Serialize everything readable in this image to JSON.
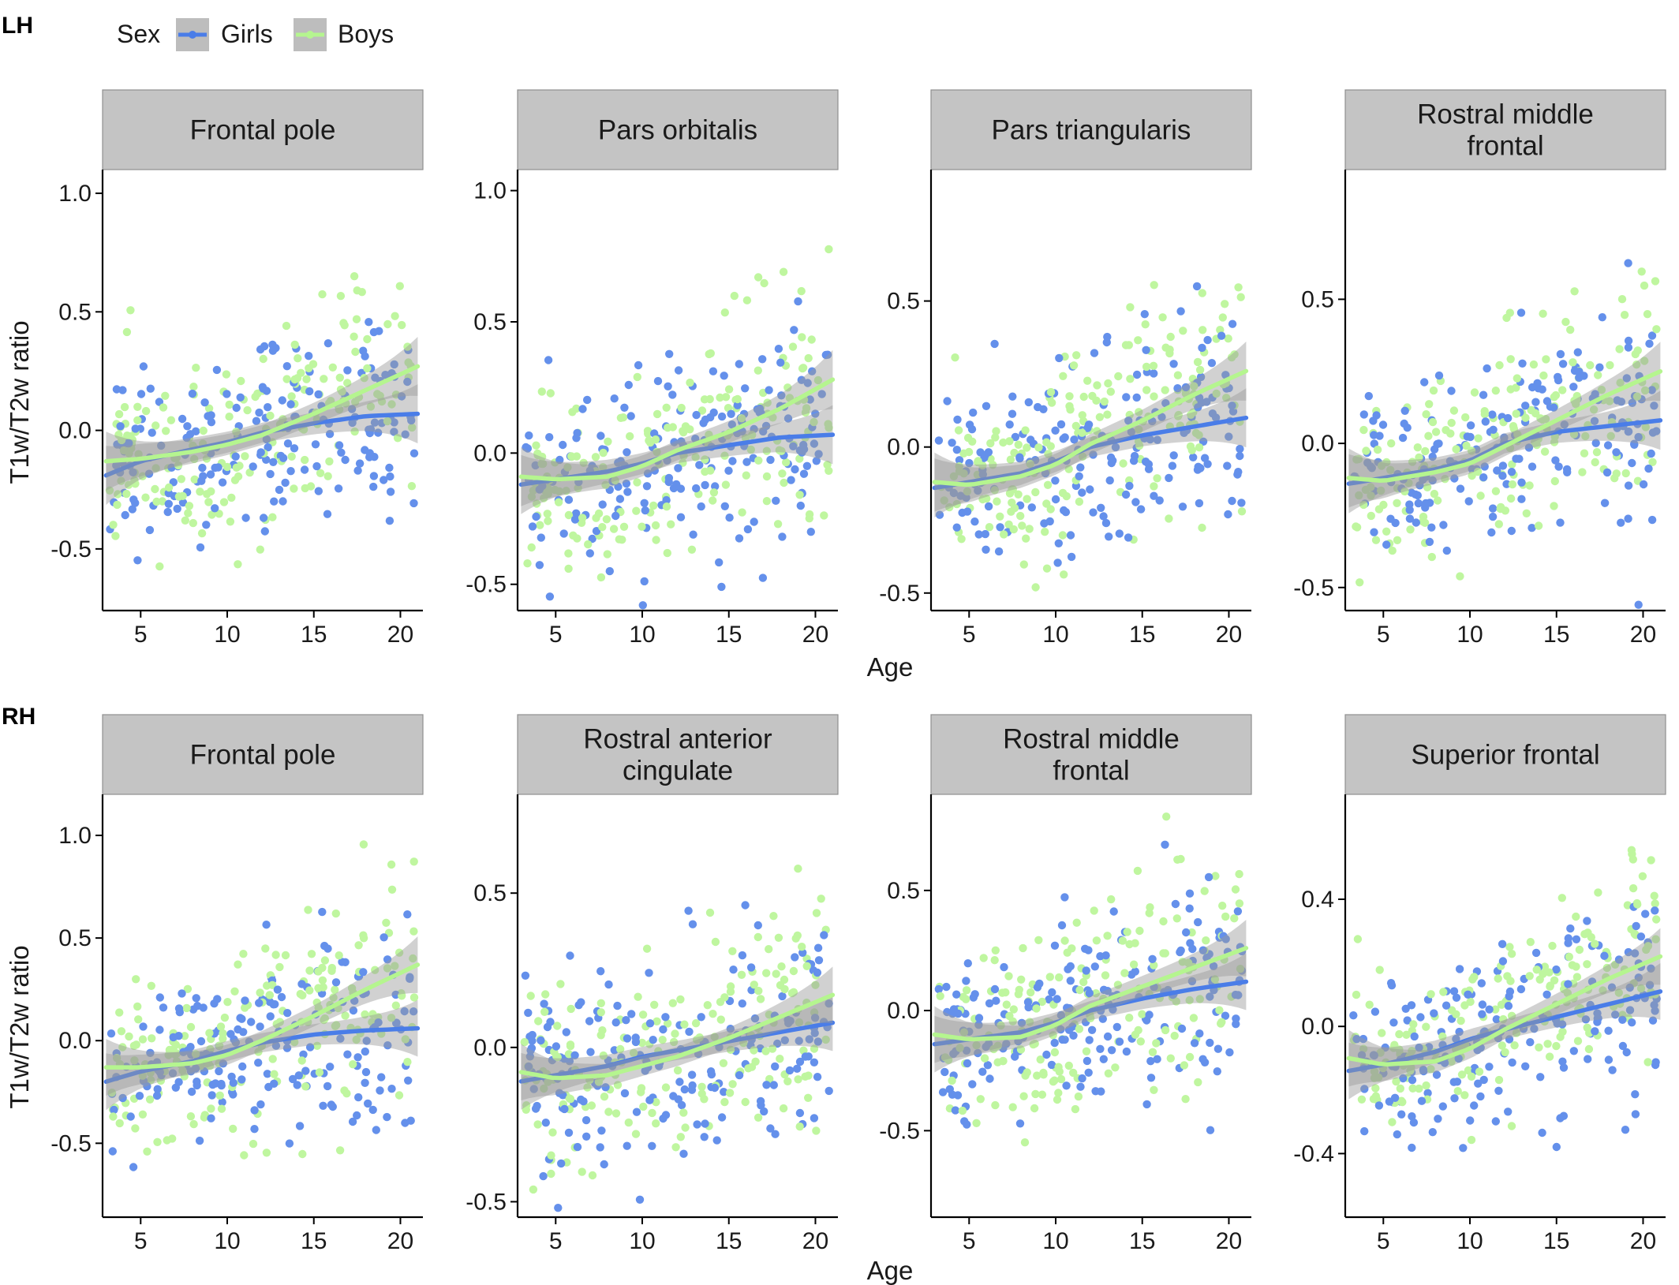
{
  "figure": {
    "legend": {
      "title": "Sex",
      "entries": [
        "Girls",
        "Boys"
      ]
    },
    "colors": {
      "Girls": "#4a7de8",
      "Boys": "#b5f58f",
      "ribbon": "#9a9a9a",
      "strip": "#c4c4c4"
    },
    "rows": [
      {
        "label": "LH",
        "xlabel": "Age"
      },
      {
        "label": "RH",
        "xlabel": "Age"
      }
    ],
    "ylabel": "T1w/T2w ratio"
  },
  "chart_data": [
    {
      "type": "scatter",
      "row": 0,
      "col": 0,
      "title": "Frontal pole",
      "xlabel": "Age",
      "ylabel": "T1w/T2w ratio",
      "xlim": [
        2.8,
        21.3
      ],
      "ylim": [
        -0.76,
        1.1
      ],
      "xticks": [
        5,
        10,
        15,
        20
      ],
      "yticks": [
        -0.5,
        0.0,
        0.5,
        1.0
      ],
      "ytick_labels": [
        "-0.5",
        "0.0",
        "0.5",
        "1.0"
      ],
      "trend": {
        "Girls": [
          [
            3,
            -0.19
          ],
          [
            5,
            -0.13
          ],
          [
            8,
            -0.08
          ],
          [
            10,
            -0.05
          ],
          [
            12,
            -0.01
          ],
          [
            15,
            0.03
          ],
          [
            18,
            0.06
          ],
          [
            21,
            0.07
          ]
        ],
        "Boys": [
          [
            3,
            -0.13
          ],
          [
            5,
            -0.12
          ],
          [
            8,
            -0.09
          ],
          [
            10,
            -0.06
          ],
          [
            12,
            -0.02
          ],
          [
            15,
            0.07
          ],
          [
            18,
            0.17
          ],
          [
            21,
            0.27
          ]
        ]
      },
      "scatter_seed": 11
    },
    {
      "type": "scatter",
      "row": 0,
      "col": 1,
      "title": "Pars orbitalis",
      "xlabel": "Age",
      "ylabel": "T1w/T2w ratio",
      "xlim": [
        2.8,
        21.3
      ],
      "ylim": [
        -0.6,
        1.08
      ],
      "xticks": [
        5,
        10,
        15,
        20
      ],
      "yticks": [
        -0.5,
        0.0,
        0.5,
        1.0
      ],
      "ytick_labels": [
        "-0.5",
        "0.0",
        "0.5",
        "1.0"
      ],
      "trend": {
        "Girls": [
          [
            3,
            -0.12
          ],
          [
            5,
            -0.1
          ],
          [
            8,
            -0.07
          ],
          [
            10,
            -0.04
          ],
          [
            12,
            0.0
          ],
          [
            15,
            0.03
          ],
          [
            18,
            0.06
          ],
          [
            21,
            0.07
          ]
        ],
        "Boys": [
          [
            3,
            -0.09
          ],
          [
            5,
            -0.1
          ],
          [
            8,
            -0.09
          ],
          [
            10,
            -0.05
          ],
          [
            12,
            0.01
          ],
          [
            15,
            0.08
          ],
          [
            18,
            0.17
          ],
          [
            21,
            0.28
          ]
        ]
      },
      "scatter_seed": 23
    },
    {
      "type": "scatter",
      "row": 0,
      "col": 2,
      "title": "Pars triangularis",
      "xlabel": "Age",
      "ylabel": "T1w/T2w ratio",
      "xlim": [
        2.8,
        21.3
      ],
      "ylim": [
        -0.56,
        0.95
      ],
      "xticks": [
        5,
        10,
        15,
        20
      ],
      "yticks": [
        -0.5,
        0.0,
        0.5
      ],
      "ytick_labels": [
        "-0.5",
        "0.0",
        "0.5"
      ],
      "trend": {
        "Girls": [
          [
            3,
            -0.14
          ],
          [
            5,
            -0.12
          ],
          [
            8,
            -0.09
          ],
          [
            10,
            -0.05
          ],
          [
            12,
            0.0
          ],
          [
            15,
            0.04
          ],
          [
            18,
            0.07
          ],
          [
            21,
            0.1
          ]
        ],
        "Boys": [
          [
            3,
            -0.12
          ],
          [
            5,
            -0.13
          ],
          [
            8,
            -0.1
          ],
          [
            10,
            -0.06
          ],
          [
            12,
            0.01
          ],
          [
            15,
            0.09
          ],
          [
            18,
            0.18
          ],
          [
            21,
            0.26
          ]
        ]
      },
      "scatter_seed": 37
    },
    {
      "type": "scatter",
      "row": 0,
      "col": 3,
      "title": "Rostral middle frontal",
      "title_lines": [
        "Rostral middle",
        "frontal"
      ],
      "xlabel": "Age",
      "ylabel": "T1w/T2w ratio",
      "xlim": [
        2.8,
        21.3
      ],
      "ylim": [
        -0.58,
        0.95
      ],
      "xticks": [
        5,
        10,
        15,
        20
      ],
      "yticks": [
        -0.5,
        0.0,
        0.5
      ],
      "ytick_labels": [
        "-0.5",
        "0.0",
        "0.5"
      ],
      "trend": {
        "Girls": [
          [
            3,
            -0.14
          ],
          [
            5,
            -0.12
          ],
          [
            8,
            -0.09
          ],
          [
            10,
            -0.06
          ],
          [
            12,
            0.0
          ],
          [
            15,
            0.04
          ],
          [
            18,
            0.06
          ],
          [
            21,
            0.08
          ]
        ],
        "Boys": [
          [
            3,
            -0.12
          ],
          [
            5,
            -0.13
          ],
          [
            8,
            -0.1
          ],
          [
            10,
            -0.07
          ],
          [
            12,
            -0.01
          ],
          [
            15,
            0.08
          ],
          [
            18,
            0.17
          ],
          [
            21,
            0.25
          ]
        ]
      },
      "scatter_seed": 41
    },
    {
      "type": "scatter",
      "row": 1,
      "col": 0,
      "title": "Frontal pole",
      "xlabel": "Age",
      "ylabel": "T1w/T2w ratio",
      "xlim": [
        2.8,
        21.3
      ],
      "ylim": [
        -0.86,
        1.2
      ],
      "xticks": [
        5,
        10,
        15,
        20
      ],
      "yticks": [
        -0.5,
        0.0,
        0.5,
        1.0
      ],
      "ytick_labels": [
        "-0.5",
        "0.0",
        "0.5",
        "1.0"
      ],
      "trend": {
        "Girls": [
          [
            3,
            -0.2
          ],
          [
            5,
            -0.15
          ],
          [
            8,
            -0.1
          ],
          [
            10,
            -0.05
          ],
          [
            12,
            -0.01
          ],
          [
            15,
            0.03
          ],
          [
            18,
            0.05
          ],
          [
            21,
            0.06
          ]
        ],
        "Boys": [
          [
            3,
            -0.13
          ],
          [
            5,
            -0.13
          ],
          [
            8,
            -0.11
          ],
          [
            10,
            -0.07
          ],
          [
            12,
            0.0
          ],
          [
            15,
            0.12
          ],
          [
            18,
            0.25
          ],
          [
            21,
            0.37
          ]
        ]
      },
      "scatter_seed": 53
    },
    {
      "type": "scatter",
      "row": 1,
      "col": 1,
      "title": "Rostral anterior cingulate",
      "title_lines": [
        "Rostral anterior",
        "cingulate"
      ],
      "xlabel": "Age",
      "ylabel": "T1w/T2w ratio",
      "xlim": [
        2.8,
        21.3
      ],
      "ylim": [
        -0.55,
        0.82
      ],
      "xticks": [
        5,
        10,
        15,
        20
      ],
      "yticks": [
        -0.5,
        0.0,
        0.5
      ],
      "ytick_labels": [
        "-0.5",
        "0.0",
        "0.5"
      ],
      "trend": {
        "Girls": [
          [
            3,
            -0.11
          ],
          [
            5,
            -0.09
          ],
          [
            8,
            -0.06
          ],
          [
            10,
            -0.03
          ],
          [
            12,
            -0.01
          ],
          [
            15,
            0.02
          ],
          [
            18,
            0.05
          ],
          [
            21,
            0.08
          ]
        ],
        "Boys": [
          [
            3,
            -0.08
          ],
          [
            5,
            -0.1
          ],
          [
            8,
            -0.09
          ],
          [
            10,
            -0.06
          ],
          [
            12,
            -0.03
          ],
          [
            15,
            0.03
          ],
          [
            18,
            0.1
          ],
          [
            21,
            0.17
          ]
        ]
      },
      "scatter_seed": 67
    },
    {
      "type": "scatter",
      "row": 1,
      "col": 2,
      "title": "Rostral middle frontal",
      "title_lines": [
        "Rostral middle",
        "frontal"
      ],
      "xlabel": "Age",
      "ylabel": "T1w/T2w ratio",
      "xlim": [
        2.8,
        21.3
      ],
      "ylim": [
        -0.86,
        0.9
      ],
      "xticks": [
        5,
        10,
        15,
        20
      ],
      "yticks": [
        -0.5,
        0.0,
        0.5
      ],
      "ytick_labels": [
        "-0.5",
        "0.0",
        "0.5"
      ],
      "trend": {
        "Girls": [
          [
            3,
            -0.14
          ],
          [
            5,
            -0.12
          ],
          [
            8,
            -0.09
          ],
          [
            10,
            -0.05
          ],
          [
            12,
            0.0
          ],
          [
            15,
            0.05
          ],
          [
            18,
            0.09
          ],
          [
            21,
            0.12
          ]
        ],
        "Boys": [
          [
            3,
            -0.1
          ],
          [
            5,
            -0.12
          ],
          [
            8,
            -0.11
          ],
          [
            10,
            -0.06
          ],
          [
            12,
            0.02
          ],
          [
            15,
            0.1
          ],
          [
            18,
            0.18
          ],
          [
            21,
            0.26
          ]
        ]
      },
      "scatter_seed": 79
    },
    {
      "type": "scatter",
      "row": 1,
      "col": 3,
      "title": "Superior frontal",
      "xlabel": "Age",
      "ylabel": "T1w/T2w ratio",
      "xlim": [
        2.8,
        21.3
      ],
      "ylim": [
        -0.6,
        0.73
      ],
      "xticks": [
        5,
        10,
        15,
        20
      ],
      "yticks": [
        -0.4,
        0.0,
        0.4
      ],
      "ytick_labels": [
        "-0.4",
        "0.0",
        "0.4"
      ],
      "trend": {
        "Girls": [
          [
            3,
            -0.14
          ],
          [
            5,
            -0.12
          ],
          [
            8,
            -0.08
          ],
          [
            10,
            -0.04
          ],
          [
            12,
            -0.01
          ],
          [
            15,
            0.03
          ],
          [
            18,
            0.07
          ],
          [
            21,
            0.11
          ]
        ],
        "Boys": [
          [
            3,
            -0.1
          ],
          [
            5,
            -0.12
          ],
          [
            8,
            -0.11
          ],
          [
            10,
            -0.07
          ],
          [
            12,
            -0.01
          ],
          [
            15,
            0.07
          ],
          [
            18,
            0.15
          ],
          [
            21,
            0.22
          ]
        ]
      },
      "scatter_seed": 97
    }
  ]
}
